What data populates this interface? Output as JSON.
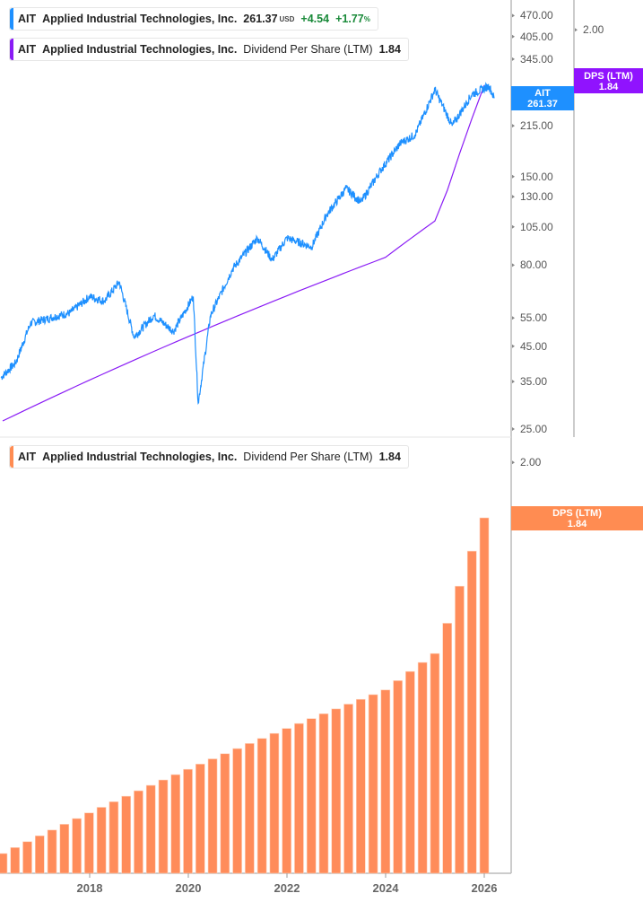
{
  "legend_price": {
    "ticker": "AIT",
    "company": "Applied Industrial Technologies, Inc.",
    "price": "261.37",
    "currency": "USD",
    "change": "+4.54",
    "change_pct": "+1.77",
    "pct_sign": "%",
    "color": "#1e90ff"
  },
  "legend_dps_top": {
    "ticker": "AIT",
    "company": "Applied Industrial Technologies, Inc.",
    "metric": "Dividend Per Share (LTM)",
    "value": "1.84",
    "color": "#8a1cf5"
  },
  "legend_dps_bottom": {
    "ticker": "AIT",
    "company": "Applied Industrial Technologies, Inc.",
    "metric": "Dividend Per Share (LTM)",
    "value": "1.84",
    "color": "#ff8c52"
  },
  "tags": {
    "price": {
      "line1": "AIT",
      "line2": "261.37",
      "color": "#1e90ff"
    },
    "dps_top": {
      "line1": "DPS (LTM)",
      "line2": "1.84",
      "color": "#9013fe"
    },
    "dps_bottom": {
      "line1": "DPS (LTM)",
      "line2": "1.84",
      "color": "#ff8c52"
    }
  },
  "chart_data": [
    {
      "type": "line",
      "scale": "log",
      "price_axis_ticks": [
        "470.00",
        "405.00",
        "345.00",
        "215.00",
        "150.00",
        "130.00",
        "105.00",
        "80.00",
        "55.00",
        "45.00",
        "35.00",
        "25.00"
      ],
      "dps_axis_ticks": [
        "2.00"
      ],
      "series": [
        {
          "name": "AIT",
          "color": "#1e90ff",
          "points": [
            [
              2016.2,
              36
            ],
            [
              2016.5,
              40
            ],
            [
              2016.8,
              53
            ],
            [
              2017.2,
              55
            ],
            [
              2017.6,
              57
            ],
            [
              2018.0,
              64
            ],
            [
              2018.3,
              62
            ],
            [
              2018.6,
              71
            ],
            [
              2018.9,
              48
            ],
            [
              2019.3,
              56
            ],
            [
              2019.7,
              50
            ],
            [
              2020.1,
              64
            ],
            [
              2020.2,
              30
            ],
            [
              2020.45,
              56
            ],
            [
              2020.9,
              78
            ],
            [
              2021.4,
              97
            ],
            [
              2021.7,
              83
            ],
            [
              2022.0,
              97
            ],
            [
              2022.5,
              91
            ],
            [
              2022.8,
              114
            ],
            [
              2023.2,
              138
            ],
            [
              2023.5,
              125
            ],
            [
              2023.9,
              157
            ],
            [
              2024.3,
              190
            ],
            [
              2024.6,
              202
            ],
            [
              2025.0,
              278
            ],
            [
              2025.35,
              215
            ],
            [
              2025.75,
              269
            ],
            [
              2026.1,
              285
            ],
            [
              2026.2,
              261.37
            ]
          ]
        },
        {
          "name": "Dividend Per Share (LTM)",
          "color": "#8a1cf5"
        }
      ]
    },
    {
      "type": "bar",
      "scale": "log",
      "x_tick_labels": [
        "2018",
        "2020",
        "2022",
        "2024",
        "2026"
      ],
      "y_tick_labels": [
        "2.00"
      ],
      "series": [
        {
          "name": "Dividend Per Share (LTM)",
          "color": "#ff8c5a",
          "values": [
            1.11,
            1.12,
            1.13,
            1.14,
            1.15,
            1.16,
            1.17,
            1.18,
            1.19,
            1.2,
            1.21,
            1.22,
            1.23,
            1.24,
            1.25,
            1.26,
            1.27,
            1.28,
            1.29,
            1.3,
            1.31,
            1.32,
            1.33,
            1.34,
            1.35,
            1.36,
            1.37,
            1.38,
            1.39,
            1.4,
            1.41,
            1.42,
            1.44,
            1.46,
            1.48,
            1.5,
            1.57,
            1.66,
            1.75,
            1.84
          ]
        }
      ]
    }
  ]
}
